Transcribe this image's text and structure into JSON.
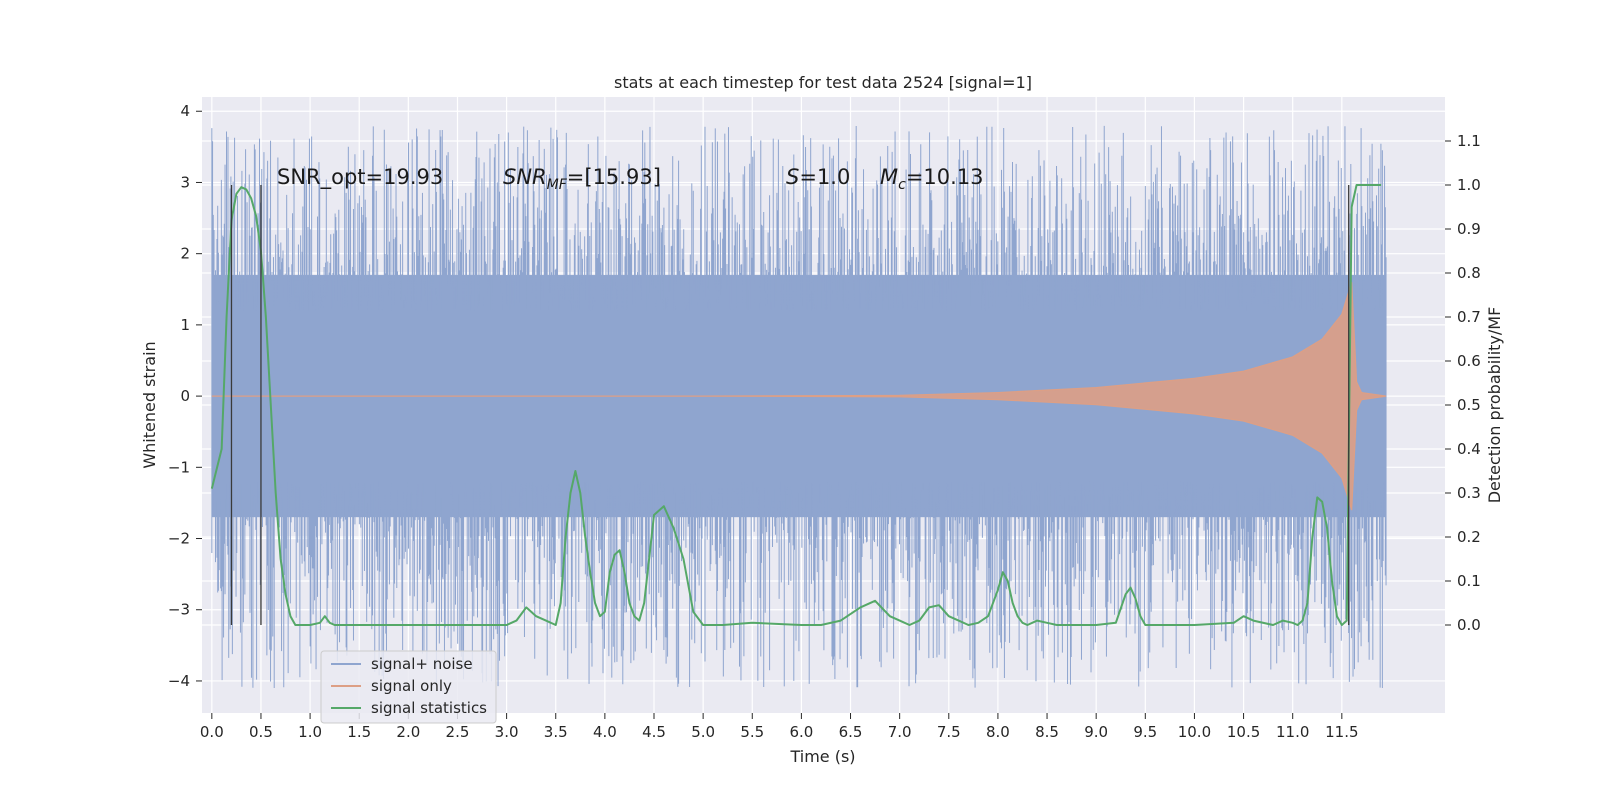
{
  "chart_data": {
    "type": "line",
    "title": "stats at each timestep for test data 2524 [signal=1]",
    "xlabel": "Time (s)",
    "ylabel": "Whitened strain",
    "y2label": "Detection probability/MF",
    "xlim": [
      -0.1,
      12.55
    ],
    "ylim": [
      -4.45,
      4.2
    ],
    "y2lim": [
      -0.2,
      1.2
    ],
    "x_ticks": [
      0.0,
      0.5,
      1.0,
      1.5,
      2.0,
      2.5,
      3.0,
      3.5,
      4.0,
      4.5,
      5.0,
      5.5,
      6.0,
      6.5,
      7.0,
      7.5,
      8.0,
      8.5,
      9.0,
      9.5,
      10.0,
      10.5,
      11.0,
      11.5
    ],
    "x_tick_labels": [
      "0.0",
      "0.5",
      "1.0",
      "1.5",
      "2.0",
      "2.5",
      "3.0",
      "3.5",
      "4.0",
      "4.5",
      "5.0",
      "5.5",
      "6.0",
      "6.5",
      "7.0",
      "7.5",
      "8.0",
      "8.5",
      "9.0",
      "9.5",
      "10.0",
      "10.5",
      "11.0",
      "11.5"
    ],
    "y_ticks": [
      4,
      3,
      2,
      1,
      0,
      -1,
      -2,
      -3,
      -4
    ],
    "y_tick_labels": [
      "4",
      "3",
      "2",
      "1",
      "0",
      "−1",
      "−2",
      "−3",
      "−4"
    ],
    "y2_ticks": [
      1.1,
      1.0,
      0.9,
      0.8,
      0.7,
      0.6,
      0.5,
      0.4,
      0.3,
      0.2,
      0.1,
      0.0
    ],
    "y2_tick_labels": [
      "1.1",
      "1.0",
      "0.9",
      "0.8",
      "0.7",
      "0.6",
      "0.5",
      "0.4",
      "0.3",
      "0.2",
      "0.1",
      "0.0"
    ],
    "grid": true,
    "legend_position": "lower-left",
    "noise_envelope": {
      "x_start": 0.0,
      "x_end": 11.95,
      "core_amplitude": 1.7,
      "max_peak": 3.8,
      "min_peak": -4.1
    },
    "signal_only": {
      "x": [
        0.0,
        5.0,
        7.0,
        8.0,
        9.0,
        10.0,
        10.5,
        11.0,
        11.3,
        11.5,
        11.6,
        11.65,
        11.7,
        11.95
      ],
      "amplitude": [
        0.0,
        0.0,
        0.01,
        0.05,
        0.12,
        0.25,
        0.35,
        0.55,
        0.8,
        1.15,
        1.6,
        0.2,
        0.05,
        0.0
      ]
    },
    "signal_statistics": {
      "x": [
        0.0,
        0.1,
        0.15,
        0.2,
        0.25,
        0.3,
        0.35,
        0.4,
        0.45,
        0.5,
        0.55,
        0.6,
        0.65,
        0.7,
        0.75,
        0.8,
        0.85,
        0.9,
        1.0,
        1.1,
        1.15,
        1.2,
        1.25,
        1.3,
        1.5,
        2.0,
        2.5,
        3.0,
        3.1,
        3.2,
        3.25,
        3.3,
        3.4,
        3.5,
        3.55,
        3.6,
        3.65,
        3.7,
        3.75,
        3.8,
        3.85,
        3.9,
        3.95,
        4.0,
        4.05,
        4.1,
        4.15,
        4.2,
        4.25,
        4.3,
        4.35,
        4.4,
        4.45,
        4.5,
        4.6,
        4.7,
        4.8,
        4.9,
        5.0,
        5.2,
        5.5,
        6.0,
        6.2,
        6.4,
        6.6,
        6.75,
        6.9,
        7.0,
        7.1,
        7.2,
        7.3,
        7.4,
        7.5,
        7.6,
        7.7,
        7.8,
        7.9,
        8.0,
        8.05,
        8.1,
        8.15,
        8.2,
        8.25,
        8.3,
        8.4,
        8.5,
        8.6,
        8.7,
        9.0,
        9.2,
        9.3,
        9.35,
        9.4,
        9.45,
        9.5,
        9.6,
        9.7,
        10.0,
        10.4,
        10.5,
        10.6,
        10.8,
        10.9,
        11.0,
        11.05,
        11.1,
        11.15,
        11.2,
        11.25,
        11.3,
        11.35,
        11.4,
        11.45,
        11.5,
        11.55,
        11.6,
        11.65,
        11.7,
        11.8,
        11.9
      ],
      "values": [
        0.31,
        0.4,
        0.7,
        0.92,
        0.98,
        0.995,
        0.99,
        0.97,
        0.93,
        0.85,
        0.7,
        0.5,
        0.3,
        0.15,
        0.07,
        0.02,
        0.0,
        0.0,
        0.0,
        0.005,
        0.02,
        0.005,
        0.0,
        0.0,
        0.0,
        0.0,
        0.0,
        0.0,
        0.01,
        0.04,
        0.03,
        0.02,
        0.01,
        0.0,
        0.05,
        0.2,
        0.3,
        0.35,
        0.3,
        0.2,
        0.12,
        0.05,
        0.02,
        0.03,
        0.12,
        0.16,
        0.17,
        0.12,
        0.05,
        0.02,
        0.01,
        0.05,
        0.15,
        0.25,
        0.27,
        0.22,
        0.15,
        0.03,
        0.0,
        0.0,
        0.005,
        0.0,
        0.0,
        0.01,
        0.04,
        0.055,
        0.02,
        0.01,
        0.0,
        0.01,
        0.04,
        0.045,
        0.02,
        0.01,
        0.0,
        0.005,
        0.02,
        0.08,
        0.12,
        0.1,
        0.05,
        0.02,
        0.005,
        0.0,
        0.01,
        0.005,
        0.0,
        0.0,
        0.0,
        0.005,
        0.07,
        0.085,
        0.06,
        0.02,
        0.0,
        0.0,
        0.0,
        0.0,
        0.005,
        0.02,
        0.01,
        0.0,
        0.01,
        0.005,
        0.0,
        0.01,
        0.05,
        0.2,
        0.29,
        0.28,
        0.22,
        0.1,
        0.02,
        0.0,
        0.01,
        0.95,
        1.0,
        1.0,
        1.0,
        1.0
      ]
    },
    "detection_markers": [
      0.2,
      0.5,
      11.57
    ],
    "annotations": [
      {
        "text": "SNR_opt=19.93",
        "x": 0.2,
        "y2": 1.0
      },
      {
        "text_main": "SNR",
        "text_sub": "MF",
        "text_rest": "=[15.93]",
        "x": 2.6,
        "y2": 1.0
      },
      {
        "text_main": "S",
        "text_sub": "",
        "text_rest": "=1.0",
        "x": 5.6,
        "y2": 1.0
      },
      {
        "text_main": "M",
        "text_sub": "c",
        "text_rest": "=10.13",
        "x": 6.6,
        "y2": 1.0
      }
    ],
    "series": [
      {
        "name": "signal+ noise",
        "color": "#8fa5cf"
      },
      {
        "name": "signal only",
        "color": "#dd9f85"
      },
      {
        "name": "signal statistics",
        "color": "#55a868"
      }
    ]
  }
}
